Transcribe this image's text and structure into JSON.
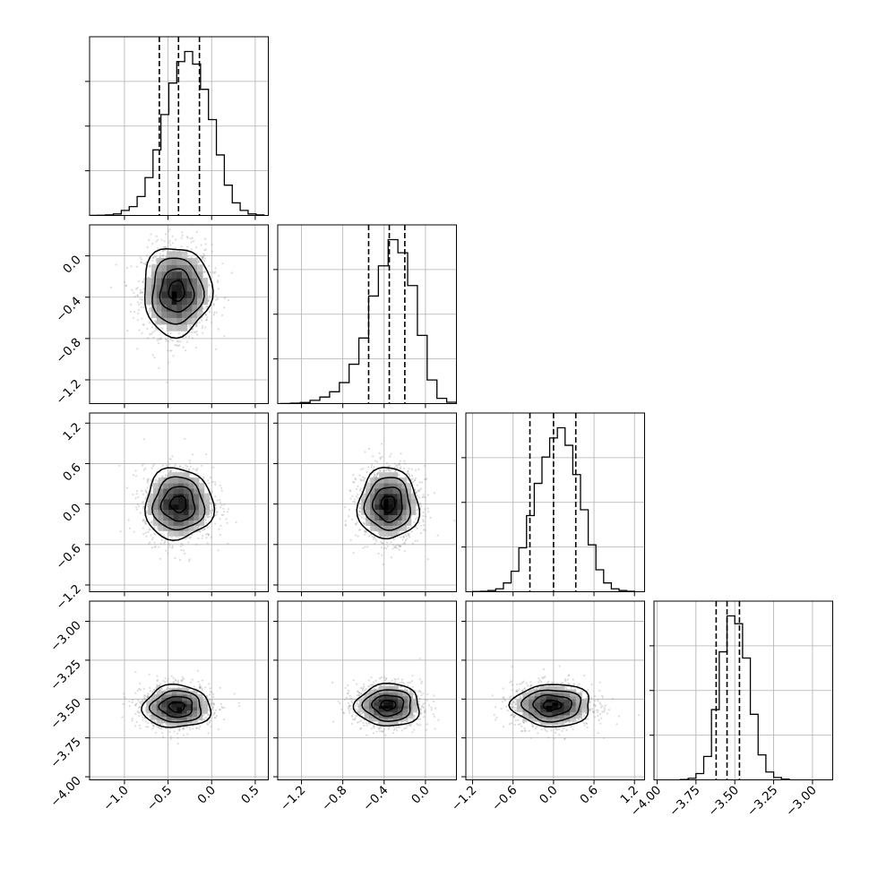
{
  "chart_data": {
    "type": "corner",
    "parameters": 4,
    "colors": {
      "ink": "#000000",
      "grid": "#b0b0b0",
      "scatter": "#9a9a9a",
      "density_low": "#ffffff",
      "density_high": "#000000"
    },
    "grid": true,
    "axes_ticks": [
      {
        "ticks": [
          -1.0,
          -0.5,
          0.0,
          0.5
        ],
        "labels": [
          "−1.0",
          "−0.5",
          "0.0",
          "0.5"
        ],
        "lim": [
          -1.4,
          0.65
        ]
      },
      {
        "ticks": [
          -1.2,
          -0.8,
          -0.4,
          0.0
        ],
        "labels": [
          "−1.2",
          "−0.8",
          "−0.4",
          "0.0"
        ],
        "lim": [
          -1.43,
          0.3
        ]
      },
      {
        "ticks": [
          -1.2,
          -0.6,
          0.0,
          0.6,
          1.2
        ],
        "labels": [
          "−1.2",
          "−0.6",
          "0.0",
          "0.6",
          "1.2"
        ],
        "lim": [
          -1.3,
          1.35
        ]
      },
      {
        "ticks": [
          -4.0,
          -3.75,
          -3.5,
          -3.25,
          -3.0
        ],
        "labels": [
          "−4.00",
          "−3.75",
          "−3.50",
          "−3.25",
          "−3.00"
        ],
        "lim": [
          -4.02,
          -2.87
        ]
      }
    ],
    "marginals": [
      {
        "parameter": 0,
        "quantiles": [
          -0.6,
          -0.38,
          -0.14
        ],
        "hist_range": [
          -1.4,
          0.6
        ],
        "hist_counts": [
          1,
          2,
          4,
          12,
          40,
          70,
          150,
          300,
          520,
          800,
          1050,
          1220,
          1300,
          1200,
          1000,
          760,
          480,
          240,
          100,
          40,
          12,
          4
        ]
      },
      {
        "parameter": 1,
        "quantiles": [
          -0.55,
          -0.35,
          -0.2
        ],
        "hist_range": [
          -1.4,
          0.3
        ],
        "hist_counts": [
          1,
          3,
          8,
          25,
          50,
          90,
          160,
          300,
          500,
          820,
          1050,
          1250,
          1150,
          900,
          520,
          180,
          40,
          10
        ]
      },
      {
        "parameter": 2,
        "quantiles": [
          -0.35,
          0.0,
          0.33
        ],
        "hist_range": [
          -1.2,
          1.2
        ],
        "hist_counts": [
          1,
          3,
          8,
          20,
          60,
          140,
          300,
          520,
          740,
          920,
          1050,
          1120,
          1000,
          800,
          560,
          320,
          150,
          60,
          20,
          8,
          3
        ]
      },
      {
        "parameter": 3,
        "quantiles": [
          -3.62,
          -3.55,
          -3.47
        ],
        "hist_range": [
          -3.85,
          -3.15
        ],
        "hist_counts": [
          2,
          10,
          40,
          150,
          450,
          820,
          1050,
          1000,
          780,
          420,
          160,
          50,
          15,
          5
        ]
      }
    ],
    "joints": [
      {
        "row": 1,
        "col": 0,
        "center": [
          -0.4,
          -0.34
        ],
        "sd": [
          0.2,
          0.22
        ]
      },
      {
        "row": 2,
        "col": 0,
        "center": [
          -0.38,
          0.0
        ],
        "sd": [
          0.2,
          0.27
        ]
      },
      {
        "row": 2,
        "col": 1,
        "center": [
          -0.36,
          0.0
        ],
        "sd": [
          0.15,
          0.27
        ]
      },
      {
        "row": 3,
        "col": 0,
        "center": [
          -0.4,
          -3.55
        ],
        "sd": [
          0.2,
          0.07
        ]
      },
      {
        "row": 3,
        "col": 1,
        "center": [
          -0.36,
          -3.54
        ],
        "sd": [
          0.16,
          0.07
        ]
      },
      {
        "row": 3,
        "col": 2,
        "center": [
          -0.02,
          -3.54
        ],
        "sd": [
          0.3,
          0.07
        ]
      }
    ]
  }
}
